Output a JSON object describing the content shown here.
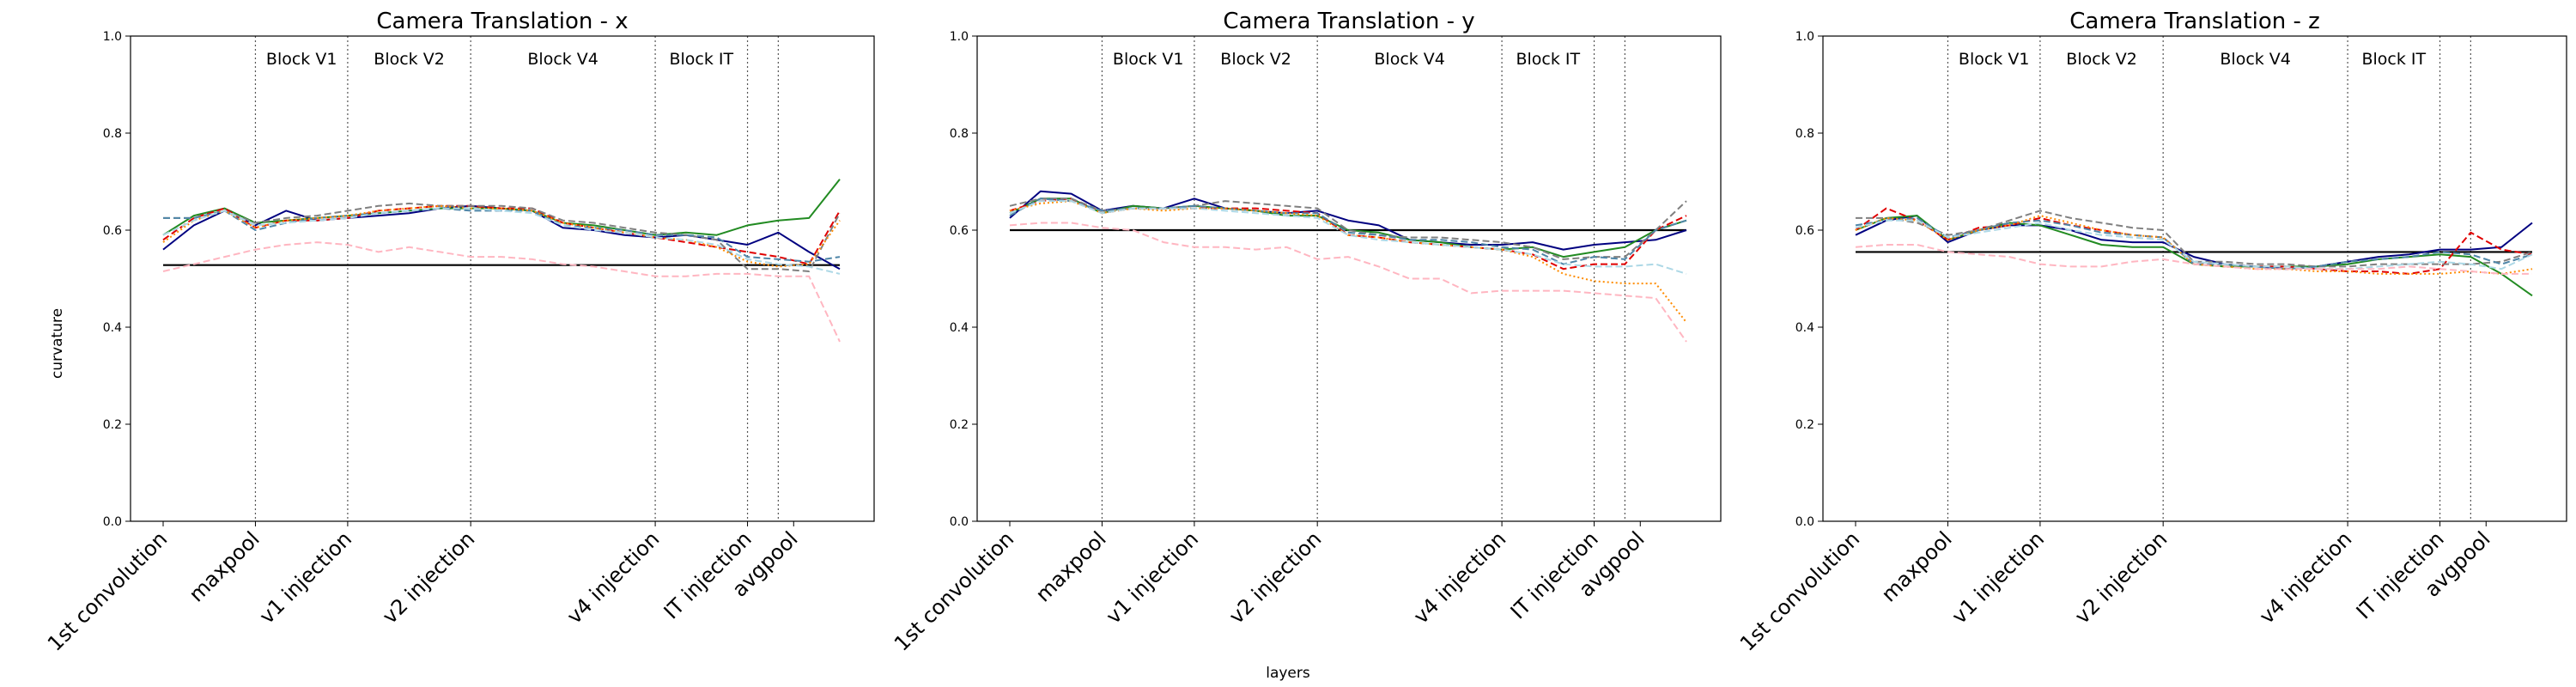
{
  "figure": {
    "ylabel": "curvature",
    "xlabel": "layers"
  },
  "chart_data": [
    {
      "type": "line",
      "title": "Camera Translation - x",
      "ylim": [
        0.0,
        1.0
      ],
      "yticks": [
        "0.0",
        "0.2",
        "0.4",
        "0.6",
        "0.8",
        "1.0"
      ],
      "xticks": [
        "1st convolution",
        "maxpool",
        "v1 injection",
        "v2 injection",
        "v4 injection",
        "IT injection",
        "avgpool"
      ],
      "block_labels": [
        "Block V1",
        "Block V2",
        "Block V4",
        "Block IT"
      ],
      "reference": 0.528,
      "series": [
        {
          "color": "#000080",
          "style": "solid",
          "values": [
            0.56,
            0.61,
            0.64,
            0.61,
            0.64,
            0.62,
            0.625,
            0.63,
            0.635,
            0.645,
            0.65,
            0.645,
            0.64,
            0.605,
            0.6,
            0.59,
            0.585,
            0.59,
            0.58,
            0.57,
            0.595,
            0.555,
            0.52
          ]
        },
        {
          "color": "#228B22",
          "style": "solid",
          "values": [
            0.59,
            0.63,
            0.645,
            0.615,
            0.62,
            0.625,
            0.63,
            0.635,
            0.64,
            0.645,
            0.645,
            0.645,
            0.64,
            0.615,
            0.61,
            0.6,
            0.59,
            0.595,
            0.59,
            0.61,
            0.62,
            0.625,
            0.705
          ]
        },
        {
          "color": "#e00000",
          "style": "dashed",
          "values": [
            0.58,
            0.625,
            0.645,
            0.605,
            0.62,
            0.62,
            0.625,
            0.64,
            0.645,
            0.65,
            0.65,
            0.645,
            0.645,
            0.615,
            0.605,
            0.595,
            0.585,
            0.575,
            0.565,
            0.555,
            0.545,
            0.53,
            0.64
          ]
        },
        {
          "color": "#808080",
          "style": "dashed",
          "values": [
            0.625,
            0.625,
            0.64,
            0.615,
            0.625,
            0.63,
            0.64,
            0.65,
            0.655,
            0.65,
            0.65,
            0.65,
            0.645,
            0.62,
            0.615,
            0.605,
            0.595,
            0.59,
            0.58,
            0.52,
            0.52,
            0.515,
            0.635
          ]
        },
        {
          "color": "#4f86a8",
          "style": "dashed",
          "values": [
            0.625,
            0.625,
            0.64,
            0.6,
            0.615,
            0.625,
            0.63,
            0.635,
            0.64,
            0.645,
            0.64,
            0.64,
            0.64,
            0.61,
            0.605,
            0.6,
            0.59,
            0.59,
            0.585,
            0.545,
            0.54,
            0.535,
            0.545
          ]
        },
        {
          "color": "#ff8c00",
          "style": "dotted",
          "values": [
            0.575,
            0.62,
            0.64,
            0.605,
            0.62,
            0.625,
            0.63,
            0.64,
            0.645,
            0.65,
            0.645,
            0.645,
            0.64,
            0.615,
            0.605,
            0.595,
            0.585,
            0.58,
            0.565,
            0.535,
            0.525,
            0.53,
            0.62
          ]
        },
        {
          "color": "#add8e6",
          "style": "dashed",
          "values": [
            0.59,
            0.62,
            0.64,
            0.61,
            0.615,
            0.62,
            0.625,
            0.635,
            0.64,
            0.645,
            0.645,
            0.64,
            0.635,
            0.61,
            0.6,
            0.595,
            0.585,
            0.58,
            0.57,
            0.54,
            0.53,
            0.525,
            0.51
          ]
        },
        {
          "color": "#ffb6c1",
          "style": "dashed",
          "values": [
            0.515,
            0.53,
            0.545,
            0.56,
            0.57,
            0.575,
            0.57,
            0.555,
            0.565,
            0.555,
            0.545,
            0.545,
            0.54,
            0.53,
            0.525,
            0.515,
            0.505,
            0.505,
            0.51,
            0.51,
            0.505,
            0.505,
            0.37
          ]
        }
      ]
    },
    {
      "type": "line",
      "title": "Camera Translation - y",
      "ylim": [
        0.0,
        1.0
      ],
      "yticks": [
        "0.0",
        "0.2",
        "0.4",
        "0.6",
        "0.8",
        "1.0"
      ],
      "xticks": [
        "1st convolution",
        "maxpool",
        "v1 injection",
        "v2 injection",
        "v4 injection",
        "IT injection",
        "avgpool"
      ],
      "block_labels": [
        "Block V1",
        "Block V2",
        "Block V4",
        "Block IT"
      ],
      "reference": 0.6,
      "series": [
        {
          "color": "#000080",
          "style": "solid",
          "values": [
            0.625,
            0.68,
            0.675,
            0.64,
            0.65,
            0.645,
            0.665,
            0.645,
            0.64,
            0.635,
            0.64,
            0.62,
            0.61,
            0.58,
            0.575,
            0.57,
            0.57,
            0.575,
            0.56,
            0.57,
            0.575,
            0.58,
            0.6
          ]
        },
        {
          "color": "#228B22",
          "style": "solid",
          "values": [
            0.635,
            0.665,
            0.665,
            0.635,
            0.65,
            0.645,
            0.65,
            0.645,
            0.64,
            0.63,
            0.63,
            0.6,
            0.595,
            0.58,
            0.575,
            0.565,
            0.56,
            0.565,
            0.545,
            0.555,
            0.565,
            0.6,
            0.62
          ]
        },
        {
          "color": "#e00000",
          "style": "dashed",
          "values": [
            0.64,
            0.66,
            0.665,
            0.635,
            0.645,
            0.645,
            0.645,
            0.645,
            0.645,
            0.64,
            0.635,
            0.59,
            0.585,
            0.575,
            0.57,
            0.565,
            0.56,
            0.55,
            0.52,
            0.53,
            0.53,
            0.6,
            0.63
          ]
        },
        {
          "color": "#808080",
          "style": "dashed",
          "values": [
            0.65,
            0.665,
            0.665,
            0.64,
            0.645,
            0.645,
            0.65,
            0.66,
            0.655,
            0.65,
            0.645,
            0.6,
            0.59,
            0.585,
            0.585,
            0.58,
            0.575,
            0.565,
            0.54,
            0.545,
            0.545,
            0.6,
            0.66
          ]
        },
        {
          "color": "#4f86a8",
          "style": "dashed",
          "values": [
            0.63,
            0.665,
            0.66,
            0.64,
            0.645,
            0.645,
            0.65,
            0.645,
            0.64,
            0.635,
            0.635,
            0.595,
            0.59,
            0.58,
            0.58,
            0.575,
            0.565,
            0.56,
            0.53,
            0.545,
            0.54,
            0.6,
            0.62
          ]
        },
        {
          "color": "#ff8c00",
          "style": "dotted",
          "values": [
            0.64,
            0.655,
            0.66,
            0.635,
            0.645,
            0.64,
            0.645,
            0.645,
            0.64,
            0.635,
            0.63,
            0.59,
            0.585,
            0.575,
            0.57,
            0.565,
            0.56,
            0.545,
            0.51,
            0.495,
            0.49,
            0.49,
            0.41
          ]
        },
        {
          "color": "#add8e6",
          "style": "dashed",
          "values": [
            0.635,
            0.66,
            0.66,
            0.635,
            0.645,
            0.645,
            0.645,
            0.64,
            0.635,
            0.63,
            0.625,
            0.59,
            0.58,
            0.575,
            0.57,
            0.565,
            0.56,
            0.55,
            0.53,
            0.525,
            0.525,
            0.53,
            0.51
          ]
        },
        {
          "color": "#ffb6c1",
          "style": "dashed",
          "values": [
            0.61,
            0.615,
            0.615,
            0.605,
            0.6,
            0.575,
            0.565,
            0.565,
            0.56,
            0.565,
            0.54,
            0.545,
            0.525,
            0.5,
            0.5,
            0.47,
            0.475,
            0.475,
            0.475,
            0.47,
            0.465,
            0.46,
            0.37
          ]
        }
      ]
    },
    {
      "type": "line",
      "title": "Camera Translation - z",
      "ylim": [
        0.0,
        1.0
      ],
      "yticks": [
        "0.0",
        "0.2",
        "0.4",
        "0.6",
        "0.8",
        "1.0"
      ],
      "xticks": [
        "1st convolution",
        "maxpool",
        "v1 injection",
        "v2 injection",
        "v4 injection",
        "IT injection",
        "avgpool"
      ],
      "block_labels": [
        "Block V1",
        "Block V2",
        "Block V4",
        "Block IT"
      ],
      "reference": 0.555,
      "series": [
        {
          "color": "#000080",
          "style": "solid",
          "values": [
            0.59,
            0.62,
            0.63,
            0.575,
            0.6,
            0.61,
            0.61,
            0.6,
            0.58,
            0.575,
            0.575,
            0.545,
            0.53,
            0.525,
            0.52,
            0.525,
            0.535,
            0.545,
            0.55,
            0.56,
            0.56,
            0.565,
            0.615
          ]
        },
        {
          "color": "#228B22",
          "style": "solid",
          "values": [
            0.6,
            0.625,
            0.63,
            0.58,
            0.6,
            0.615,
            0.61,
            0.59,
            0.57,
            0.565,
            0.565,
            0.53,
            0.525,
            0.525,
            0.525,
            0.525,
            0.53,
            0.54,
            0.545,
            0.55,
            0.545,
            0.51,
            0.465
          ]
        },
        {
          "color": "#e00000",
          "style": "dashed",
          "values": [
            0.6,
            0.645,
            0.62,
            0.58,
            0.605,
            0.61,
            0.625,
            0.61,
            0.6,
            0.59,
            0.585,
            0.53,
            0.53,
            0.525,
            0.525,
            0.52,
            0.515,
            0.515,
            0.51,
            0.52,
            0.595,
            0.56,
            0.55
          ]
        },
        {
          "color": "#808080",
          "style": "dashed",
          "values": [
            0.625,
            0.625,
            0.615,
            0.59,
            0.6,
            0.62,
            0.64,
            0.625,
            0.615,
            0.605,
            0.6,
            0.535,
            0.535,
            0.53,
            0.53,
            0.525,
            0.525,
            0.53,
            0.53,
            0.53,
            0.53,
            0.535,
            0.555
          ]
        },
        {
          "color": "#4f86a8",
          "style": "dashed",
          "values": [
            0.61,
            0.62,
            0.625,
            0.585,
            0.6,
            0.615,
            0.62,
            0.61,
            0.595,
            0.59,
            0.585,
            0.53,
            0.53,
            0.525,
            0.52,
            0.525,
            0.535,
            0.54,
            0.545,
            0.555,
            0.55,
            0.53,
            0.55
          ]
        },
        {
          "color": "#ff8c00",
          "style": "dotted",
          "values": [
            0.6,
            0.625,
            0.62,
            0.58,
            0.6,
            0.61,
            0.63,
            0.615,
            0.6,
            0.59,
            0.585,
            0.53,
            0.525,
            0.52,
            0.52,
            0.515,
            0.515,
            0.51,
            0.51,
            0.51,
            0.515,
            0.51,
            0.52
          ]
        },
        {
          "color": "#add8e6",
          "style": "dashed",
          "values": [
            0.605,
            0.62,
            0.62,
            0.585,
            0.595,
            0.605,
            0.615,
            0.6,
            0.59,
            0.585,
            0.58,
            0.535,
            0.53,
            0.525,
            0.525,
            0.52,
            0.52,
            0.525,
            0.53,
            0.535,
            0.53,
            0.52,
            0.55
          ]
        },
        {
          "color": "#ffb6c1",
          "style": "dashed",
          "values": [
            0.565,
            0.57,
            0.57,
            0.555,
            0.55,
            0.545,
            0.53,
            0.525,
            0.525,
            0.535,
            0.54,
            0.53,
            0.525,
            0.52,
            0.52,
            0.52,
            0.52,
            0.52,
            0.525,
            0.52,
            0.515,
            0.51,
            0.51
          ]
        }
      ]
    }
  ]
}
